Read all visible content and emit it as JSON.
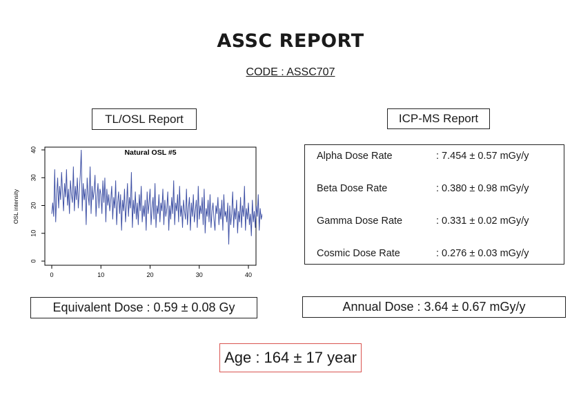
{
  "report": {
    "title": "ASSC REPORT",
    "code": "CODE : ASSC707"
  },
  "tl_osl": {
    "label": "TL/OSL Report",
    "equivalent_dose": "Equivalent Dose : 0.59 ± 0.08 Gy"
  },
  "icp_ms": {
    "label": "ICP-MS Report",
    "rows": [
      {
        "name": "Alpha Dose Rate",
        "value": ": 7.454 ± 0.57 mGy/y"
      },
      {
        "name": "Beta Dose Rate",
        "value": ": 0.380 ± 0.98 mGy/y"
      },
      {
        "name": "Gamma Dose Rate",
        "value": ": 0.331 ± 0.02 mGy/y"
      },
      {
        "name": "Cosmic Dose Rate",
        "value": ": 0.276 ± 0.03 mGy/y"
      }
    ],
    "annual_dose": "Annual Dose : 3.64 ± 0.67 mGy/y"
  },
  "age": "Age : 164 ± 17 year",
  "chart_data": {
    "type": "line",
    "title": "Natural OSL #5",
    "xlabel": "",
    "ylabel": "OSL intensity",
    "xlim": [
      0,
      40
    ],
    "ylim": [
      0,
      40
    ],
    "x_ticks": [
      0,
      10,
      20,
      30,
      40
    ],
    "y_ticks": [
      0,
      10,
      20,
      30,
      40
    ],
    "grid": false,
    "line_color": "#3f51a5",
    "series": [
      {
        "x_start": 0,
        "x_step": 0.2,
        "values": [
          17,
          21,
          16,
          33,
          14,
          24,
          30,
          19,
          27,
          22,
          32,
          25,
          18,
          28,
          23,
          33,
          20,
          26,
          17,
          29,
          24,
          21,
          34,
          18,
          27,
          22,
          30,
          19,
          25,
          31,
          40,
          18,
          28,
          22,
          26,
          13,
          30,
          24,
          20,
          34,
          17,
          27,
          22,
          25,
          31,
          16,
          23,
          28,
          19,
          26,
          24,
          17,
          29,
          21,
          30,
          14,
          26,
          20,
          24,
          18,
          22,
          27,
          15,
          23,
          19,
          29,
          13,
          21,
          25,
          17,
          24,
          11,
          22,
          18,
          26,
          14,
          20,
          28,
          16,
          23,
          19,
          32,
          12,
          22,
          17,
          25,
          15,
          21,
          13,
          24,
          18,
          27,
          14,
          20,
          16,
          22,
          11,
          25,
          17,
          21,
          26,
          13,
          19,
          23,
          15,
          28,
          12,
          20,
          17,
          24,
          14,
          21,
          18,
          26,
          13,
          22,
          16,
          19,
          25,
          11,
          20,
          15,
          23,
          17,
          29,
          13,
          21,
          18,
          24,
          14,
          27,
          16,
          20,
          12,
          22,
          18,
          15,
          26,
          13,
          19,
          23,
          11,
          21,
          16,
          24,
          14,
          18,
          22,
          12,
          27,
          15,
          20,
          17,
          23,
          13,
          26,
          10,
          19,
          16,
          22,
          14,
          24,
          12,
          18,
          21,
          15,
          11,
          20,
          17,
          23,
          13,
          19,
          15,
          22,
          11,
          24,
          16,
          18,
          14,
          21,
          6,
          20,
          13,
          17,
          25,
          12,
          19,
          15,
          22,
          10,
          18,
          14,
          23,
          12,
          20,
          16,
          27,
          11,
          19,
          15,
          21,
          13,
          17,
          9,
          22,
          14,
          18,
          12,
          20,
          16,
          24,
          11,
          19,
          15,
          17,
          13,
          21,
          10,
          18,
          14,
          22,
          12,
          16,
          20,
          9,
          17,
          13,
          19,
          11,
          15
        ]
      }
    ]
  }
}
